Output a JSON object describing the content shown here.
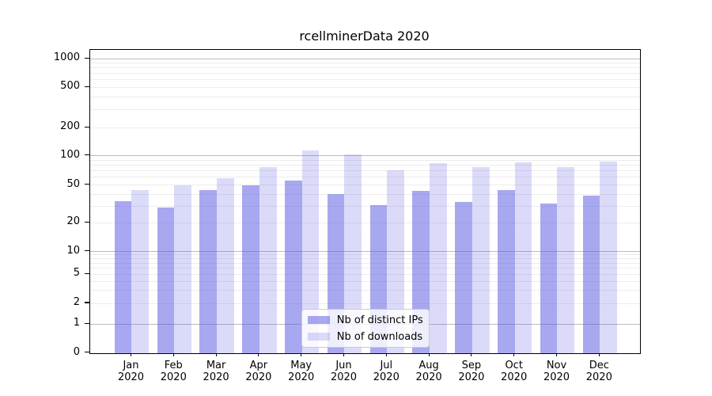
{
  "chart_data": {
    "type": "bar",
    "title": "rcellminerData 2020",
    "categories": [
      "Jan 2020",
      "Feb 2020",
      "Mar 2020",
      "Apr 2020",
      "May 2020",
      "Jun 2020",
      "Jul 2020",
      "Aug 2020",
      "Sep 2020",
      "Oct 2020",
      "Nov 2020",
      "Dec 2020"
    ],
    "series": [
      {
        "name": "Nb of distinct IPs",
        "values": [
          34,
          29,
          44,
          50,
          56,
          40,
          31,
          43,
          33,
          44,
          32,
          39
        ],
        "color": "rgba(89,89,226,0.52)"
      },
      {
        "name": "Nb of downloads",
        "values": [
          44,
          50,
          59,
          77,
          113,
          103,
          71,
          84,
          76,
          86,
          76,
          88
        ],
        "color": "rgba(89,89,226,0.215)"
      }
    ],
    "xlabel": "",
    "ylabel": "",
    "yscale": "pseudo-log",
    "yticks": [
      0,
      1,
      2,
      5,
      10,
      20,
      50,
      100,
      200,
      500,
      1000
    ],
    "ytick_labels": [
      "0",
      "1",
      "2",
      "5",
      "10",
      "20",
      "50",
      "100",
      "200",
      "500",
      "1000"
    ],
    "ylim": [
      0,
      1240
    ],
    "grid": "horizontal major (decades, gray) and minor (light gray) gridlines",
    "legend_position": "bottom-center",
    "colors": {
      "bar_distinct_ips": "rgba(89,89,226,0.52)",
      "bar_downloads": "rgba(89,89,226,0.215)",
      "grid_major": "#bbbbbb",
      "grid_minor": "#ececec",
      "axis": "#000000",
      "legend_border": "#cccccc",
      "legend_background": "rgba(255,255,255,0.8)"
    }
  }
}
